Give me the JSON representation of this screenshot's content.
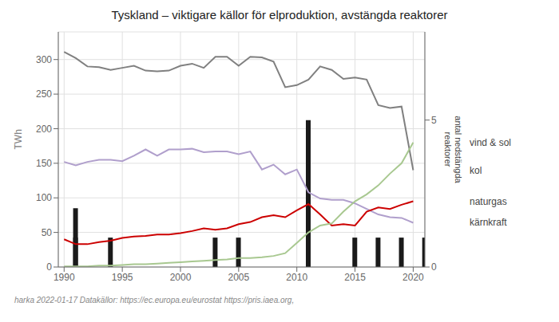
{
  "chart_data": {
    "type": "line",
    "title": "Tyskland – viktigare källor för elproduktion, avstängda reaktorer",
    "ylabel": "TWh",
    "footer": "harka  2022-01-17     Datakällor: https://ec.europa.eu/eurostat   https://pris.iaea.org,",
    "annotations": [
      "antal nedstängda",
      "reaktorer"
    ],
    "x": [
      1990,
      1991,
      1992,
      1993,
      1994,
      1995,
      1996,
      1997,
      1998,
      1999,
      2000,
      2001,
      2002,
      2003,
      2004,
      2005,
      2006,
      2007,
      2008,
      2009,
      2010,
      2011,
      2012,
      2013,
      2014,
      2015,
      2016,
      2017,
      2018,
      2019,
      2020
    ],
    "xlim": [
      1989.5,
      2021.0
    ],
    "xticks": [
      1990,
      1995,
      2000,
      2005,
      2010,
      2015,
      2020
    ],
    "ylim": [
      0,
      340
    ],
    "yticks": [
      0,
      50,
      100,
      150,
      200,
      250,
      300
    ],
    "y2lim": [
      0,
      8
    ],
    "y2ticks": [
      0,
      5
    ],
    "grid": true,
    "series": [
      {
        "name": "kol",
        "type": "line",
        "color": "#808080",
        "values": [
          311,
          302,
          290,
          289,
          285,
          288,
          291,
          284,
          283,
          284,
          291,
          294,
          288,
          304,
          304,
          291,
          304,
          303,
          297,
          260,
          263,
          271,
          290,
          285,
          272,
          274,
          271,
          234,
          230,
          232,
          140
        ]
      },
      {
        "name": "kärnkraft",
        "type": "line",
        "color": "#b09fcc",
        "values": [
          152,
          147,
          152,
          155,
          155,
          153,
          161,
          170,
          161,
          170,
          170,
          171,
          166,
          167,
          167,
          163,
          167,
          141,
          148,
          134,
          141,
          108,
          99,
          97,
          97,
          92,
          84,
          76,
          72,
          71,
          64
        ]
      },
      {
        "name": "naturgas",
        "type": "line",
        "color": "#cc0000",
        "values": [
          40,
          33,
          33,
          36,
          38,
          42,
          44,
          45,
          47,
          47,
          49,
          52,
          56,
          54,
          56,
          62,
          65,
          72,
          75,
          72,
          82,
          91,
          76,
          60,
          62,
          60,
          80,
          86,
          84,
          90,
          95
        ]
      },
      {
        "name": "vind & sol",
        "type": "line",
        "color": "#a8c890",
        "values": [
          1,
          1,
          1,
          2,
          2,
          3,
          4,
          4,
          5,
          6,
          7,
          8,
          9,
          10,
          11,
          13,
          13,
          14,
          16,
          20,
          35,
          50,
          60,
          63,
          80,
          95,
          105,
          118,
          135,
          150,
          180
        ]
      },
      {
        "type": "bar",
        "axis": "y2",
        "color": "#1a1a1a",
        "x": [
          1991,
          1991,
          1994,
          2003,
          2005,
          2011,
          2015,
          2017,
          2019,
          2021
        ],
        "values": [
          2,
          1,
          1,
          1,
          1,
          5,
          1,
          1,
          1,
          1
        ]
      }
    ]
  }
}
